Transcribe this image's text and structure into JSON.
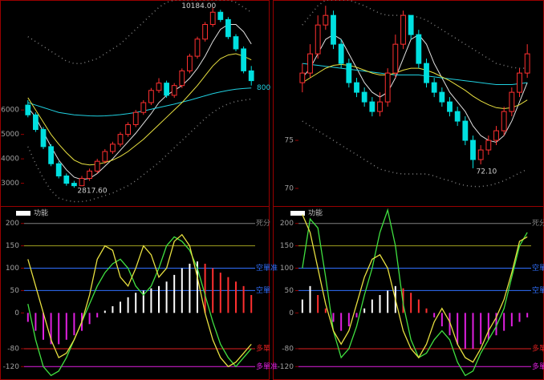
{
  "chart_data": [
    {
      "type": "candlestick",
      "ylim": [
        2200,
        10500
      ],
      "yticks": [
        3000,
        4000,
        5000,
        6000
      ],
      "up_color": "#ff3030",
      "down_color": "#00e0e0",
      "open": [
        6200,
        5800,
        5200,
        4500,
        3800,
        3300,
        3000,
        2900,
        3200,
        3500,
        3900,
        4300,
        4600,
        5000,
        5400,
        5900,
        6300,
        6800,
        7100,
        6600,
        7000,
        7600,
        8200,
        8900,
        9500,
        10000,
        9700,
        9000,
        8500,
        7600
      ],
      "close": [
        5800,
        5200,
        4500,
        3800,
        3300,
        3000,
        2900,
        3200,
        3500,
        3900,
        4300,
        4600,
        5000,
        5400,
        5900,
        6300,
        6800,
        7100,
        6600,
        7000,
        7600,
        8200,
        8900,
        9500,
        10000,
        9700,
        9000,
        8500,
        7600,
        7200
      ],
      "high": [
        6400,
        5900,
        5300,
        4600,
        3900,
        3400,
        3100,
        3300,
        3600,
        4000,
        4400,
        4700,
        5100,
        5500,
        6000,
        6400,
        6900,
        7300,
        7200,
        7100,
        7700,
        8300,
        9000,
        9600,
        10184,
        10100,
        9800,
        9100,
        8600,
        7800
      ],
      "low": [
        5700,
        5100,
        4400,
        3700,
        3200,
        2900,
        2817.6,
        2900,
        3100,
        3400,
        3800,
        4200,
        4500,
        4900,
        5300,
        5800,
        6200,
        6700,
        6500,
        6500,
        6900,
        7500,
        8100,
        8800,
        9400,
        9600,
        8900,
        8400,
        7500,
        7000
      ],
      "series": [
        {
          "color": "#e0e0e0",
          "values": [
            6100,
            5700,
            5100,
            4500,
            3950,
            3550,
            3250,
            3150,
            3200,
            3400,
            3700,
            4000,
            4350,
            4700,
            5050,
            5450,
            5850,
            6300,
            6600,
            6800,
            7000,
            7300,
            7700,
            8200,
            8800,
            9300,
            9500,
            9500,
            9200,
            8700
          ]
        },
        {
          "color": "#20d0e0",
          "values": [
            6300,
            6200,
            6100,
            6000,
            5900,
            5850,
            5800,
            5780,
            5760,
            5750,
            5760,
            5780,
            5810,
            5850,
            5900,
            5960,
            6030,
            6100,
            6170,
            6240,
            6320,
            6400,
            6490,
            6580,
            6670,
            6740,
            6800,
            6850,
            6880,
            6900
          ]
        },
        {
          "color": "#e8e040",
          "values": [
            6500,
            6000,
            5500,
            5000,
            4600,
            4250,
            3950,
            3800,
            3750,
            3780,
            3850,
            3950,
            4100,
            4300,
            4550,
            4800,
            5100,
            5400,
            5700,
            6000,
            6300,
            6650,
            7000,
            7400,
            7800,
            8100,
            8250,
            8300,
            8200,
            8050
          ]
        },
        {
          "color": "#808080",
          "style": "dotted",
          "values": [
            9000,
            8800,
            8600,
            8400,
            8200,
            8000,
            7900,
            7900,
            8000,
            8100,
            8300,
            8500,
            8700,
            9000,
            9300,
            9600,
            9900,
            10200,
            10400,
            10500,
            10500,
            10500,
            10500,
            10500,
            10500,
            10500,
            10500,
            10400,
            10200,
            10000
          ]
        },
        {
          "color": "#808080",
          "style": "dotted",
          "values": [
            4500,
            3800,
            3200,
            2700,
            2400,
            2300,
            2250,
            2250,
            2300,
            2400,
            2500,
            2600,
            2750,
            2900,
            3100,
            3350,
            3600,
            3850,
            4150,
            4450,
            4750,
            5050,
            5350,
            5650,
            5900,
            6100,
            6250,
            6350,
            6400,
            6450
          ]
        }
      ],
      "annotations": [
        {
          "text": "10184.00",
          "at": 24,
          "side": "high"
        },
        {
          "text": "2817.60",
          "at": 6,
          "side": "low"
        },
        {
          "text": "800",
          "series": 1
        }
      ]
    },
    {
      "type": "candlestick",
      "ylim": [
        68.5,
        89.6
      ],
      "yticks": [
        70,
        75
      ],
      "up_color": "#ff3030",
      "down_color": "#00e0e0",
      "open": [
        81,
        82,
        84,
        87,
        88,
        85,
        83,
        81,
        80,
        79,
        78,
        79,
        82,
        85,
        88,
        86,
        83,
        81,
        80,
        79,
        78,
        77,
        75,
        73,
        74,
        75,
        76,
        78,
        80,
        82
      ],
      "close": [
        82,
        84,
        87,
        88,
        85,
        83,
        81,
        80,
        79,
        78,
        79,
        82,
        85,
        88,
        86,
        83,
        81,
        80,
        79,
        78,
        77,
        75,
        73,
        74,
        75,
        76,
        78,
        80,
        82,
        84
      ],
      "high": [
        83,
        85,
        88,
        89,
        88.5,
        85.5,
        83.5,
        81.5,
        80.5,
        79.5,
        80,
        82.5,
        86,
        88.5,
        88,
        86.5,
        83.5,
        81.5,
        80.5,
        79.5,
        78.5,
        77.5,
        75.5,
        74.5,
        75.5,
        76.5,
        78.5,
        80.5,
        82.5,
        85
      ],
      "low": [
        80,
        81.5,
        83.5,
        86.5,
        84.5,
        82.5,
        80.5,
        79.5,
        78.5,
        77.5,
        77.5,
        78.5,
        81.5,
        84.5,
        85.5,
        82.5,
        80.5,
        79.5,
        78.5,
        77.5,
        76.5,
        74.5,
        72.1,
        72.5,
        73.5,
        74.5,
        75.5,
        77.5,
        79.5,
        81.5
      ],
      "series": [
        {
          "color": "#e0e0e0",
          "values": [
            81.5,
            82.5,
            84,
            85.5,
            86,
            85.5,
            84,
            82.5,
            81,
            80,
            79.5,
            80,
            81.5,
            83.5,
            85.5,
            86,
            85,
            83,
            81.5,
            80,
            79,
            78,
            76.5,
            75.5,
            75,
            74.8,
            75.5,
            77,
            79,
            81
          ]
        },
        {
          "color": "#20d0e0",
          "values": [
            83,
            82.9,
            82.8,
            82.7,
            82.6,
            82.5,
            82.4,
            82.3,
            82.2,
            82.1,
            82,
            81.9,
            81.8,
            81.8,
            81.8,
            81.8,
            81.7,
            81.6,
            81.5,
            81.4,
            81.3,
            81.2,
            81.1,
            81,
            80.9,
            80.8,
            80.8,
            80.8,
            80.9,
            81
          ]
        },
        {
          "color": "#e8e040",
          "values": [
            81,
            81.5,
            82,
            82.5,
            82.8,
            82.9,
            82.8,
            82.6,
            82.3,
            82,
            81.8,
            81.8,
            82,
            82.3,
            82.5,
            82.5,
            82.3,
            82,
            81.6,
            81.2,
            80.7,
            80.2,
            79.6,
            79.1,
            78.7,
            78.4,
            78.3,
            78.4,
            78.7,
            79.2
          ]
        },
        {
          "color": "#808080",
          "style": "dotted",
          "values": [
            87,
            88,
            89,
            89.6,
            89.6,
            89.6,
            89.6,
            89.3,
            89,
            88.6,
            88.2,
            88,
            88,
            88,
            88,
            87.8,
            87.5,
            87,
            86.5,
            86,
            85.5,
            85,
            84.5,
            84,
            83.5,
            83,
            82.8,
            82.6,
            82.5,
            82.5
          ]
        },
        {
          "color": "#808080",
          "style": "dotted",
          "values": [
            77,
            76.5,
            76,
            75.5,
            75,
            74.5,
            74,
            73.5,
            73,
            72.5,
            72,
            71.8,
            71.6,
            71.5,
            71.5,
            71.5,
            71.5,
            71.3,
            71,
            70.8,
            70.5,
            70.3,
            70.2,
            70.2,
            70.3,
            70.5,
            70.8,
            71.2,
            71.6,
            72
          ]
        }
      ],
      "annotations": [
        {
          "text": "72.10",
          "at": 22,
          "side": "low"
        }
      ]
    },
    {
      "type": "oscillator",
      "title": "功能",
      "ylim": [
        -150,
        230
      ],
      "yticks": [
        -120,
        -80,
        0,
        50,
        100,
        150,
        200
      ],
      "bar_colors": [
        "#ffffff",
        "#ff3030",
        "#e020e0"
      ],
      "reference_lines": [
        {
          "value": 200,
          "color": "#808080",
          "label": "死分"
        },
        {
          "value": 150,
          "color": "#a0a020"
        },
        {
          "value": 100,
          "color": "#3070ff",
          "label": "空單准"
        },
        {
          "value": 50,
          "color": "#3070ff",
          "label": "空單"
        },
        {
          "value": -80,
          "color": "#e02020",
          "label": "多單"
        },
        {
          "value": -120,
          "color": "#e020e0",
          "label": "多單准"
        }
      ],
      "bars": [
        -20,
        -40,
        -60,
        -70,
        -70,
        -60,
        -50,
        -40,
        -25,
        -10,
        5,
        15,
        25,
        35,
        45,
        50,
        55,
        60,
        70,
        85,
        100,
        110,
        115,
        110,
        100,
        90,
        80,
        70,
        60,
        40
      ],
      "series": [
        {
          "color": "#40e040",
          "values": [
            20,
            -60,
            -120,
            -140,
            -130,
            -100,
            -60,
            -20,
            20,
            60,
            90,
            110,
            120,
            100,
            60,
            40,
            60,
            100,
            150,
            170,
            160,
            140,
            100,
            40,
            -20,
            -70,
            -100,
            -120,
            -100,
            -80
          ]
        },
        {
          "color": "#e8e040",
          "values": [
            120,
            60,
            0,
            -60,
            -100,
            -90,
            -60,
            -20,
            40,
            120,
            150,
            140,
            80,
            60,
            100,
            150,
            130,
            80,
            100,
            160,
            175,
            150,
            80,
            0,
            -60,
            -100,
            -120,
            -110,
            -90,
            -70
          ]
        }
      ]
    },
    {
      "type": "oscillator",
      "title": "功能",
      "ylim": [
        -150,
        230
      ],
      "yticks": [
        -120,
        -80,
        0,
        50,
        100,
        150,
        200
      ],
      "bar_colors": [
        "#ffffff",
        "#ff3030",
        "#e020e0"
      ],
      "reference_lines": [
        {
          "value": 200,
          "color": "#808080",
          "label": "死分"
        },
        {
          "value": 150,
          "color": "#a0a020"
        },
        {
          "value": 100,
          "color": "#3070ff",
          "label": "空單准"
        },
        {
          "value": 50,
          "color": "#3070ff",
          "label": "空單"
        },
        {
          "value": -80,
          "color": "#e02020",
          "label": "多單"
        },
        {
          "value": -120,
          "color": "#e020e0",
          "label": "多單准"
        }
      ],
      "bars": [
        30,
        60,
        40,
        10,
        -20,
        -40,
        -30,
        -10,
        10,
        30,
        40,
        50,
        60,
        55,
        45,
        30,
        10,
        -10,
        -30,
        -50,
        -70,
        -80,
        -80,
        -70,
        -60,
        -50,
        -40,
        -30,
        -20,
        -10
      ],
      "series": [
        {
          "color": "#40e040",
          "values": [
            100,
            210,
            190,
            80,
            -40,
            -100,
            -80,
            -30,
            40,
            100,
            180,
            230,
            150,
            20,
            -60,
            -100,
            -90,
            -60,
            -40,
            -60,
            -110,
            -140,
            -130,
            -90,
            -60,
            -30,
            10,
            80,
            150,
            180
          ]
        },
        {
          "color": "#e8e040",
          "values": [
            220,
            180,
            100,
            20,
            -40,
            -70,
            -40,
            20,
            80,
            120,
            130,
            100,
            30,
            -40,
            -80,
            -100,
            -70,
            -20,
            10,
            -20,
            -70,
            -100,
            -110,
            -80,
            -40,
            -10,
            30,
            90,
            160,
            170
          ]
        }
      ]
    }
  ]
}
